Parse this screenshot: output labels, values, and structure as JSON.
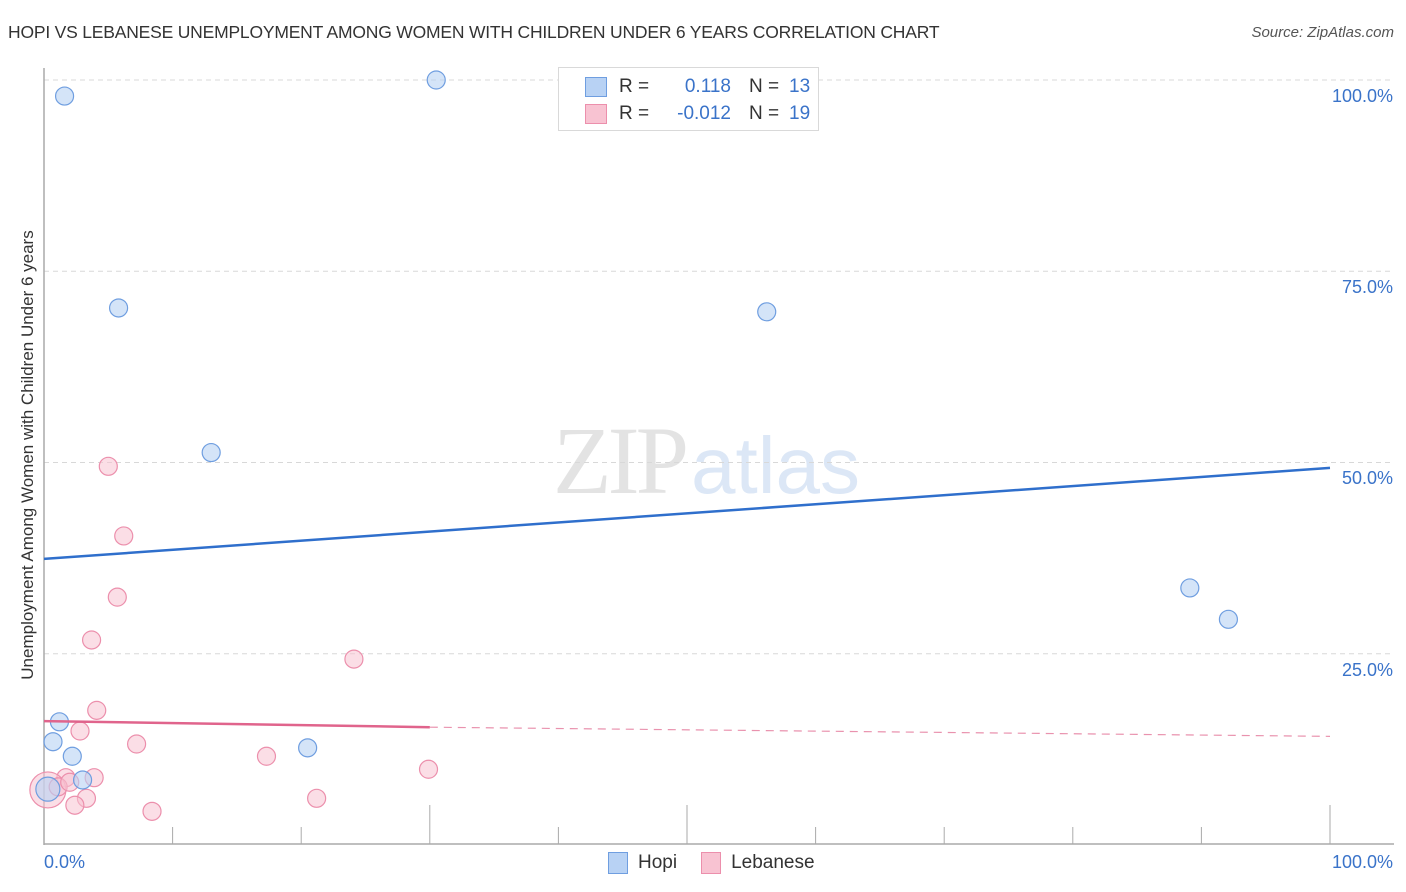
{
  "header": {
    "title": "HOPI VS LEBANESE UNEMPLOYMENT AMONG WOMEN WITH CHILDREN UNDER 6 YEARS CORRELATION CHART",
    "source": "Source: ZipAtlas.com"
  },
  "watermark": {
    "zip": "ZIP",
    "atlas": "atlas"
  },
  "legend": {
    "rows": [
      {
        "series": "Hopi",
        "r_label": "R =",
        "r_value": "0.118",
        "n_label": "N =",
        "n_value": "13"
      },
      {
        "series": "Lebanese",
        "r_label": "R =",
        "r_value": "-0.012",
        "n_label": "N =",
        "n_value": "19"
      }
    ]
  },
  "axes": {
    "ylabel": "Unemployment Among Women with Children Under 6 years",
    "x_ticks": {
      "left": "0.0%",
      "right": "100.0%"
    },
    "y_ticks": [
      "100.0%",
      "75.0%",
      "50.0%",
      "25.0%"
    ]
  },
  "bottom_legend": [
    {
      "label": "Hopi"
    },
    {
      "label": "Lebanese"
    }
  ],
  "colors": {
    "hopi_fill": "#b8d2f4",
    "hopi_stroke": "#6f9ee0",
    "hopi_line": "#2f6fcc",
    "lebanese_fill": "#f8c3d2",
    "lebanese_stroke": "#ec8fac",
    "lebanese_line": "#e0648c",
    "tick_label": "#3a73c9",
    "grid": "#d8d8d8"
  },
  "chart_data": {
    "type": "scatter",
    "title": "HOPI VS LEBANESE UNEMPLOYMENT AMONG WOMEN WITH CHILDREN UNDER 6 YEARS CORRELATION CHART",
    "xlabel": "",
    "ylabel": "Unemployment Among Women with Children Under 6 years",
    "xlim": [
      0,
      100
    ],
    "ylim": [
      0,
      100
    ],
    "x_tick_labels": [
      "0.0%",
      "100.0%"
    ],
    "y_tick_labels": [
      "25.0%",
      "50.0%",
      "75.0%",
      "100.0%"
    ],
    "grid": true,
    "legend_position": "top-center and bottom",
    "series": [
      {
        "name": "Hopi",
        "R": 0.118,
        "N": 13,
        "points": [
          [
            1.6,
            97.9
          ],
          [
            30.5,
            100.0
          ],
          [
            5.8,
            70.2
          ],
          [
            56.2,
            69.7
          ],
          [
            13.0,
            51.3
          ],
          [
            89.1,
            33.6
          ],
          [
            92.1,
            29.5
          ],
          [
            1.2,
            16.1
          ],
          [
            0.7,
            13.5
          ],
          [
            2.2,
            11.6
          ],
          [
            3.0,
            8.5
          ],
          [
            20.5,
            12.7
          ],
          [
            0.3,
            7.3
          ]
        ],
        "trend": {
          "x": [
            0,
            100
          ],
          "y": [
            37.4,
            49.3
          ],
          "style": "solid"
        }
      },
      {
        "name": "Lebanese",
        "R": -0.012,
        "N": 19,
        "points": [
          [
            5.0,
            49.5
          ],
          [
            6.2,
            40.4
          ],
          [
            5.7,
            32.4
          ],
          [
            3.7,
            26.8
          ],
          [
            24.1,
            24.3
          ],
          [
            4.1,
            17.6
          ],
          [
            2.8,
            14.9
          ],
          [
            7.2,
            13.2
          ],
          [
            17.3,
            11.6
          ],
          [
            29.9,
            9.9
          ],
          [
            1.7,
            8.8
          ],
          [
            3.9,
            8.8
          ],
          [
            3.3,
            6.1
          ],
          [
            2.4,
            5.2
          ],
          [
            21.2,
            6.1
          ],
          [
            8.4,
            4.4
          ],
          [
            0.3,
            7.2
          ],
          [
            1.1,
            7.6
          ],
          [
            2.0,
            8.2
          ]
        ],
        "trend": {
          "x": [
            0,
            30,
            100
          ],
          "y": [
            16.2,
            15.4,
            14.2
          ],
          "style": "solid to 30, dashed beyond"
        }
      }
    ]
  }
}
